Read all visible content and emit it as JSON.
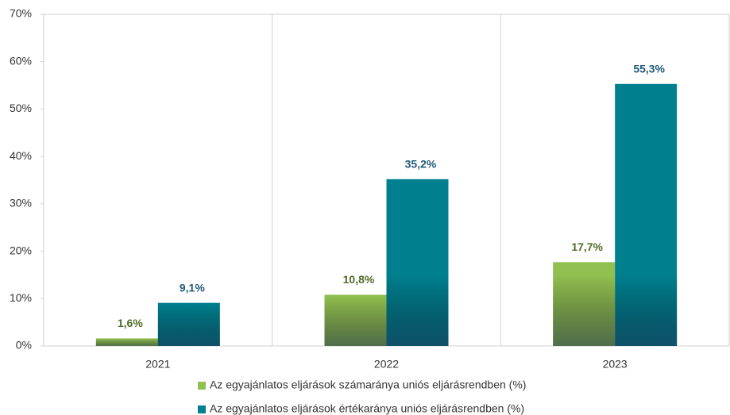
{
  "chart_data": {
    "type": "bar",
    "categories": [
      "2021",
      "2022",
      "2023"
    ],
    "series": [
      {
        "name": "Az egyajánlatos eljárások számaránya uniós eljárásrendben (%)",
        "color": "#92c050",
        "label_color": "#4f6b28",
        "values": [
          1.6,
          10.8,
          17.7
        ],
        "value_labels": [
          "1,6%",
          "10,8%",
          "17,7%"
        ]
      },
      {
        "name": "Az egyajánlatos eljárások értékaránya uniós eljárásrendben (%)",
        "color": "#00808f",
        "label_color": "#215a78",
        "values": [
          9.1,
          35.2,
          55.3
        ],
        "value_labels": [
          "9,1%",
          "35,2%",
          "55,3%"
        ]
      }
    ],
    "ylim": [
      0,
      70
    ],
    "yticks": [
      {
        "value": 0,
        "label": "0%"
      },
      {
        "value": 10,
        "label": "10%"
      },
      {
        "value": 20,
        "label": "20%"
      },
      {
        "value": 30,
        "label": "30%"
      },
      {
        "value": 40,
        "label": "40%"
      },
      {
        "value": 50,
        "label": "50%"
      },
      {
        "value": 60,
        "label": "60%"
      },
      {
        "value": 70,
        "label": "70%"
      }
    ],
    "grid": false
  }
}
